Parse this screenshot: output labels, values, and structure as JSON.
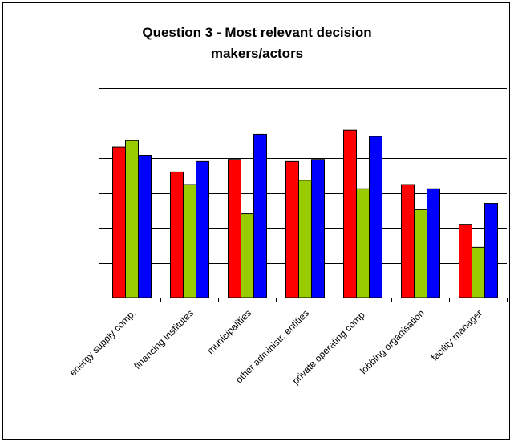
{
  "chart_data": {
    "type": "bar",
    "title": "Question 3 - Most relevant decision makers/actors",
    "title_lines": [
      "Question 3 - Most relevant decision",
      "makers/actors"
    ],
    "categories": [
      "energy supply comp.",
      "financing institutes",
      "municipalities",
      "other administr. entities",
      "private operating comp.",
      "lobbing organisation",
      "facility manager"
    ],
    "series": [
      {
        "color": "#ff0000",
        "values": [
          3.6,
          3.0,
          3.3,
          3.25,
          4.0,
          2.7,
          1.75
        ]
      },
      {
        "color": "#99cc00",
        "values": [
          3.75,
          2.7,
          2.0,
          2.8,
          2.6,
          2.1,
          1.2
        ]
      },
      {
        "color": "#0000ff",
        "values": [
          3.4,
          3.25,
          3.9,
          3.3,
          3.85,
          2.6,
          2.25
        ]
      }
    ],
    "ylim": [
      0,
      5
    ],
    "y_step": 0.833333,
    "grid": true,
    "legend": false,
    "xlabel": "",
    "ylabel": ""
  }
}
